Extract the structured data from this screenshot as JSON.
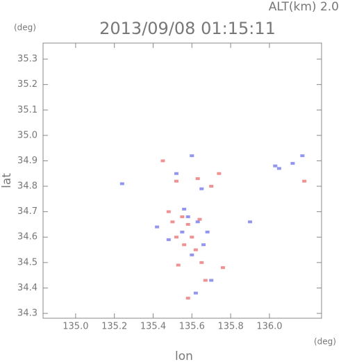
{
  "chart_data": {
    "type": "scatter",
    "title": "2013/09/08 01:15:11",
    "annotation": "ALT(km) 2.0",
    "x_label": "lon",
    "x_unit": "(deg)",
    "y_label": "lat",
    "y_unit": "(deg)",
    "xlim": [
      134.832,
      136.269
    ],
    "ylim": [
      34.281,
      35.363
    ],
    "xticks": [
      {
        "value": 135,
        "label": "135.0"
      },
      135.2,
      135.4,
      135.6,
      135.8,
      {
        "value": 136,
        "label": "136.0"
      }
    ],
    "yticks": [
      34.3,
      34.4,
      34.5,
      34.6,
      34.7,
      34.8,
      34.9,
      {
        "value": 35,
        "label": "35.0"
      },
      35.1,
      35.2,
      35.3
    ],
    "series": [
      {
        "color": "#7f84ee",
        "x": [
          136.17,
          136.12,
          136.03,
          136.05,
          135.58,
          135.63,
          135.55,
          135.42,
          135.66,
          135.7,
          135.52,
          135.6,
          135.65,
          135.24,
          135.9,
          135.62,
          135.48,
          135.56,
          135.6,
          135.68
        ],
        "values": [
          34.92,
          34.89,
          34.88,
          34.87,
          34.68,
          34.66,
          34.62,
          34.64,
          34.57,
          34.43,
          34.85,
          34.92,
          34.79,
          34.81,
          34.66,
          34.38,
          34.59,
          34.71,
          34.53,
          34.62
        ]
      },
      {
        "color": "#ee7f7f",
        "x": [
          135.58,
          135.52,
          135.6,
          135.62,
          135.65,
          135.55,
          135.5,
          135.67,
          135.58,
          135.52,
          135.63,
          135.74,
          135.7,
          135.56,
          135.64,
          135.48,
          135.76,
          135.53,
          135.45,
          136.18
        ],
        "values": [
          34.65,
          34.6,
          34.6,
          34.55,
          34.5,
          34.68,
          34.66,
          34.43,
          34.36,
          34.82,
          34.83,
          34.85,
          34.8,
          34.57,
          34.67,
          34.7,
          34.48,
          34.49,
          34.9,
          34.82
        ]
      }
    ]
  }
}
